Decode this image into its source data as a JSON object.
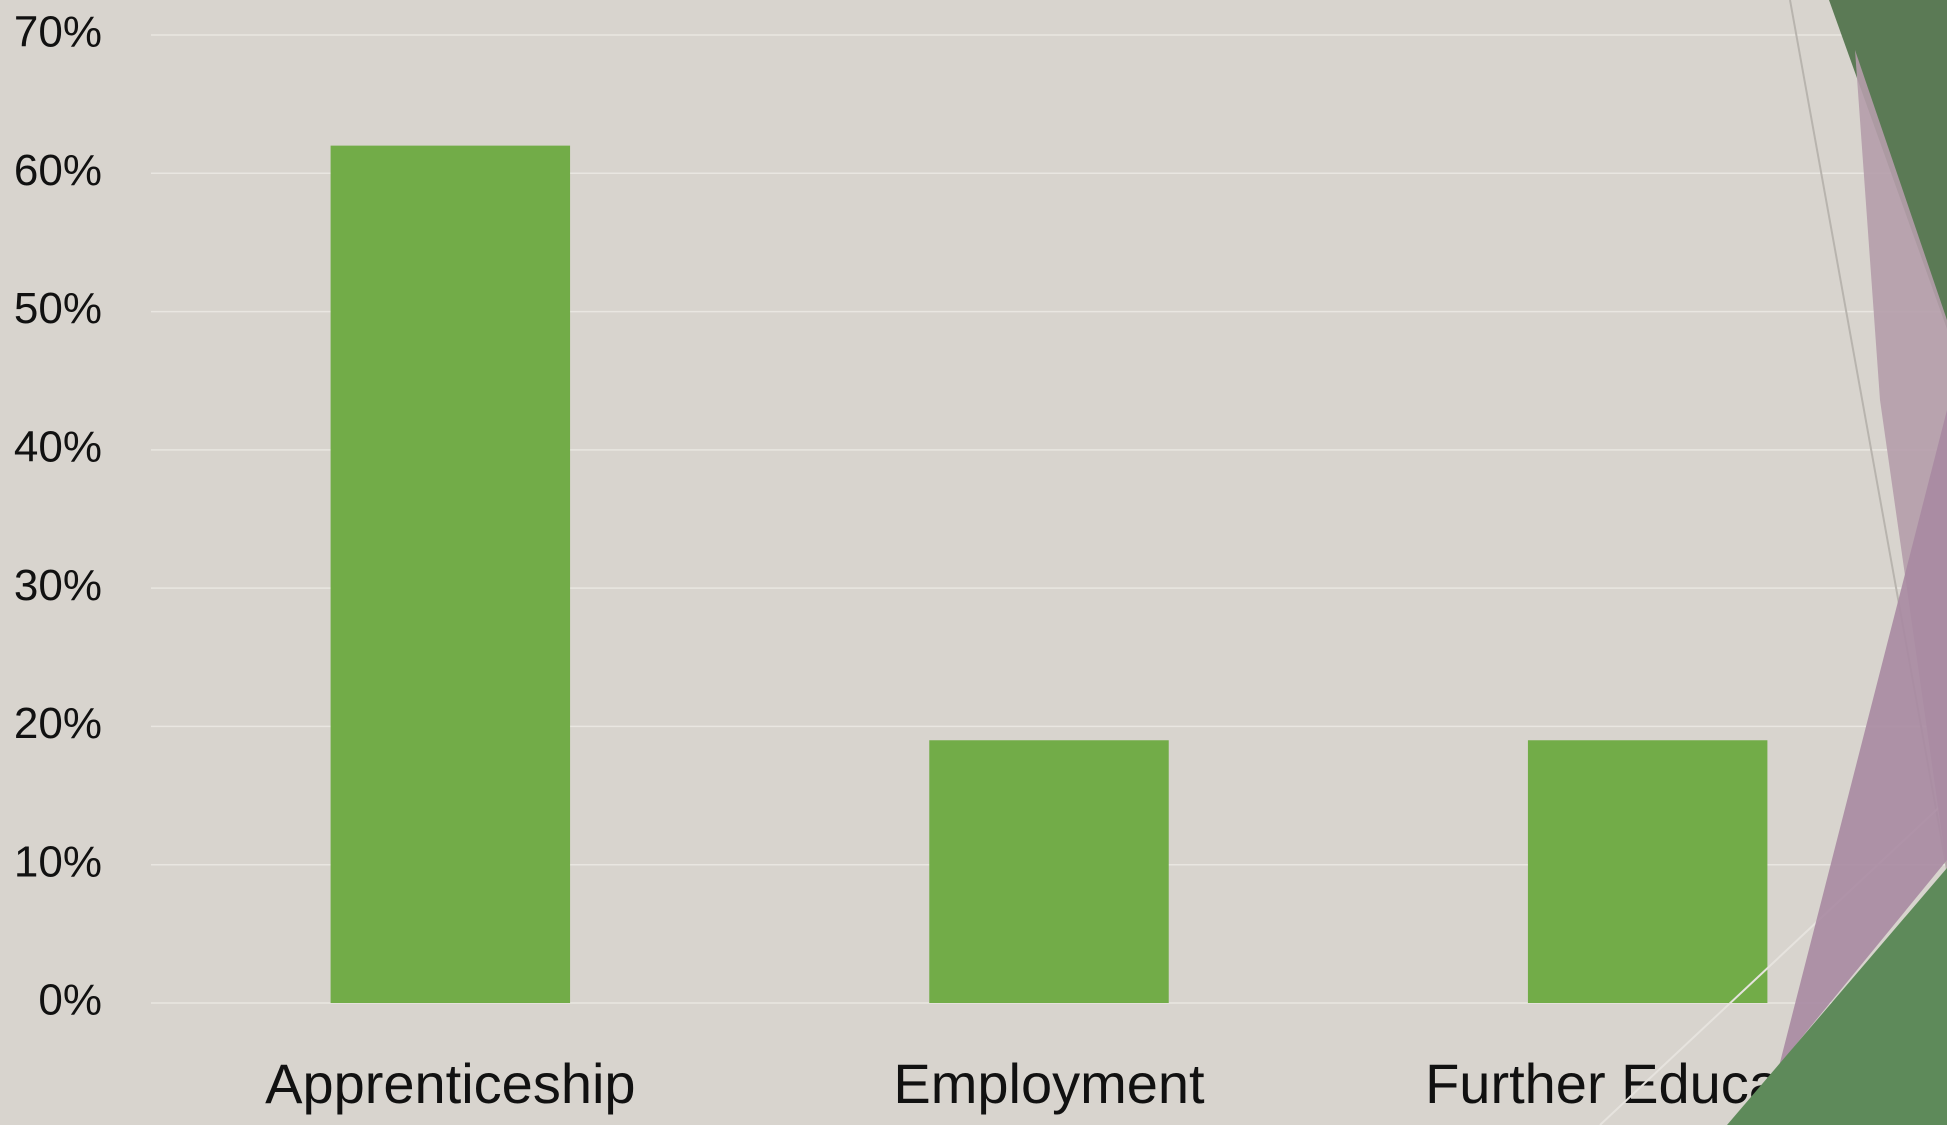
{
  "chart_data": {
    "type": "bar",
    "categories": [
      "Apprenticeship",
      "Employment",
      "Further Education"
    ],
    "values": [
      62,
      19,
      19
    ],
    "color": "#72ac48",
    "ylim": [
      0,
      70
    ],
    "yticks": [
      {
        "value": 0,
        "label": "0%"
      },
      {
        "value": 10,
        "label": "10%"
      },
      {
        "value": 20,
        "label": "20%"
      },
      {
        "value": 30,
        "label": "30%"
      },
      {
        "value": 40,
        "label": "40%"
      },
      {
        "value": 50,
        "label": "50%"
      },
      {
        "value": 60,
        "label": "60%"
      },
      {
        "value": 70,
        "label": "70%"
      }
    ],
    "grid": true
  }
}
